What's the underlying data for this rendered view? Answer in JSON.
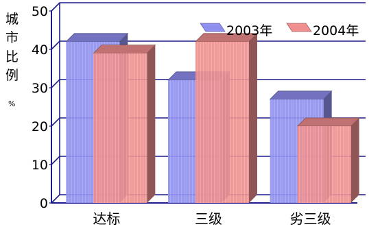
{
  "chart_data": {
    "type": "bar",
    "categories": [
      "达标",
      "三级",
      "劣三级"
    ],
    "series": [
      {
        "name": "2003年",
        "values": [
          42,
          32,
          27
        ],
        "color": "#8f8ff0"
      },
      {
        "name": "2004年",
        "values": [
          39,
          42,
          20
        ],
        "color": "#f08f8f"
      }
    ],
    "ylabel": [
      "城",
      "市",
      "比",
      "例",
      "%"
    ],
    "ylim": [
      0,
      50
    ],
    "yticks": [
      0,
      10,
      20,
      30,
      40,
      50
    ],
    "grid": true,
    "legend": "top-right"
  }
}
